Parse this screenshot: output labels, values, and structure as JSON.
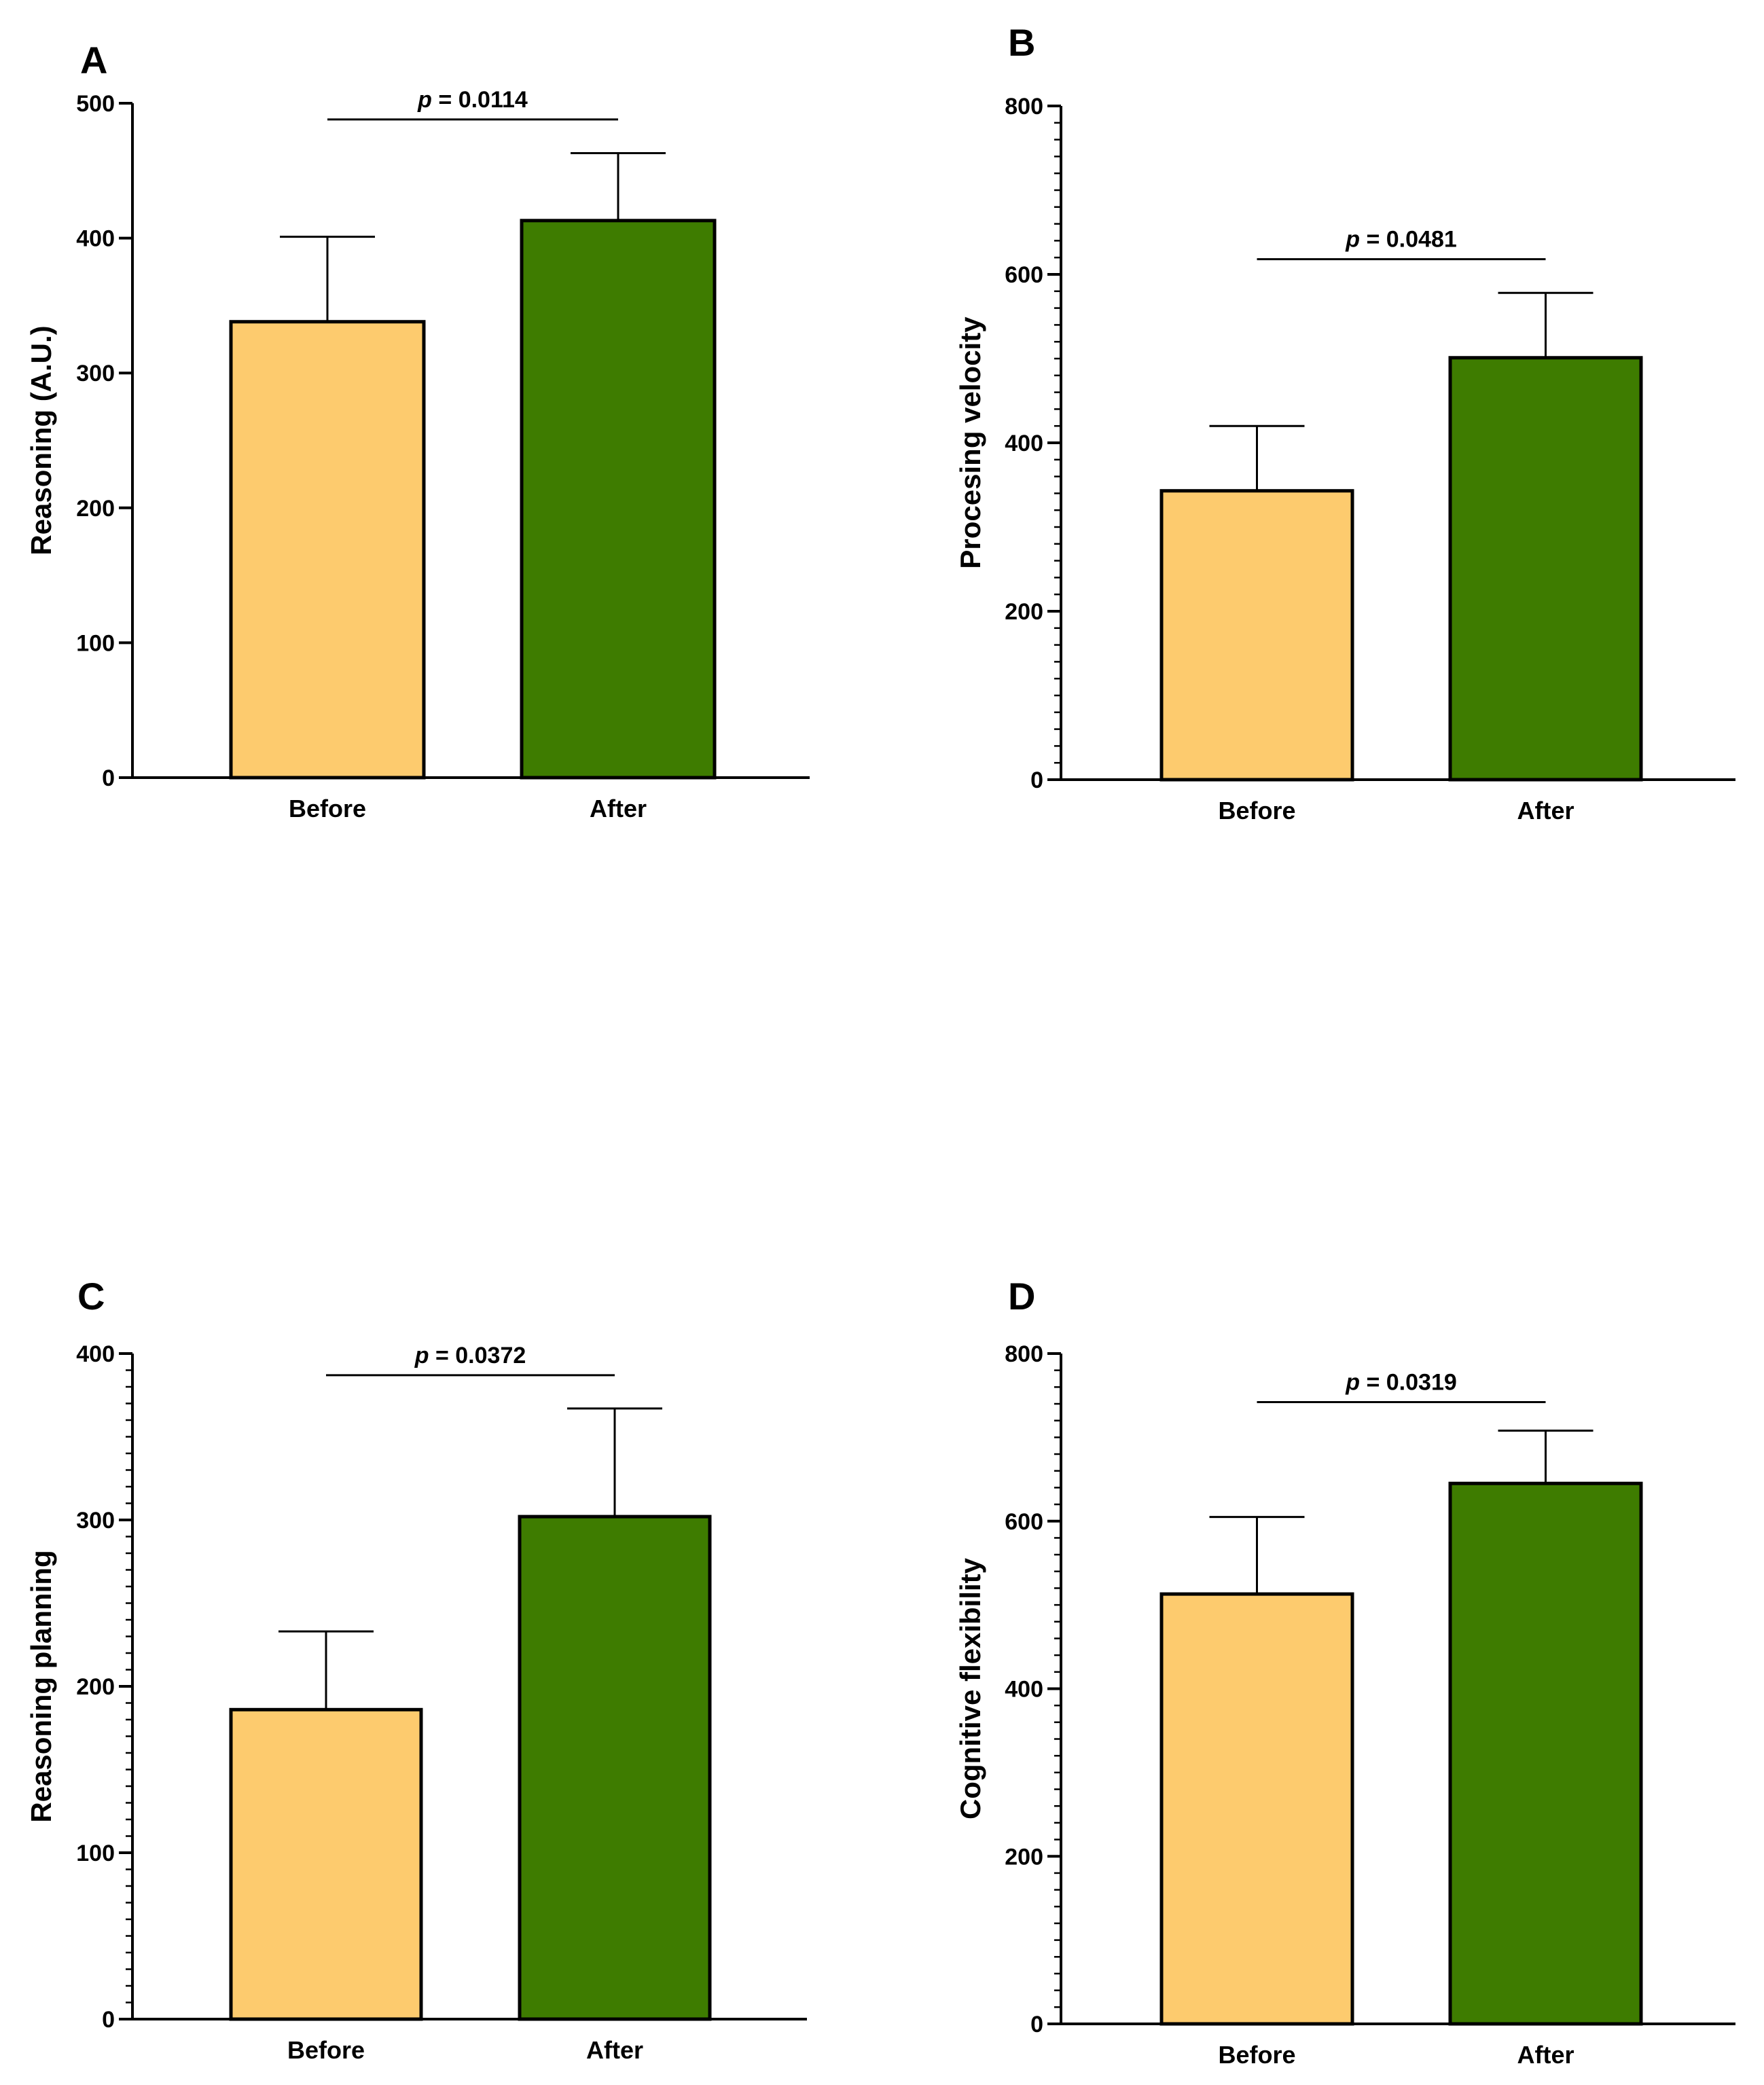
{
  "colors": {
    "before": "#FDCB6E",
    "after": "#3E7C00",
    "stroke": "#000000"
  },
  "chart_data": [
    {
      "type": "bar",
      "panel": "A",
      "categories": [
        "Before",
        "After"
      ],
      "values": [
        338,
        413
      ],
      "error_upper": [
        401,
        463
      ],
      "ylabel": "Reasoning (A.U.)",
      "ylim": [
        0,
        500
      ],
      "yticks": [
        0,
        100,
        200,
        300,
        400,
        500
      ],
      "minor_ticks": false,
      "bracket_value": 488,
      "p_prefix": "p",
      "p_text": " = 0.0114",
      "grid": false
    },
    {
      "type": "bar",
      "panel": "B",
      "categories": [
        "Before",
        "After"
      ],
      "values": [
        343,
        501
      ],
      "error_upper": [
        420,
        578
      ],
      "ylabel": "Procesing velocity",
      "ylim": [
        0,
        800
      ],
      "yticks": [
        0,
        200,
        400,
        600,
        800
      ],
      "minor_ticks": true,
      "bracket_value": 618,
      "p_prefix": "p",
      "p_text": " = 0.0481",
      "grid": false
    },
    {
      "type": "bar",
      "panel": "C",
      "categories": [
        "Before",
        "After"
      ],
      "values": [
        186,
        302
      ],
      "error_upper": [
        233,
        367
      ],
      "ylabel": "Reasoning planning",
      "ylim": [
        0,
        400
      ],
      "yticks": [
        0,
        100,
        200,
        300,
        400
      ],
      "minor_ticks": true,
      "bracket_value": 387,
      "p_prefix": "p",
      "p_text": " = 0.0372",
      "grid": false
    },
    {
      "type": "bar",
      "panel": "D",
      "categories": [
        "Before",
        "After"
      ],
      "values": [
        513,
        645
      ],
      "error_upper": [
        605,
        708
      ],
      "ylabel": "Cognitive flexibility",
      "ylim": [
        0,
        800
      ],
      "yticks": [
        0,
        200,
        400,
        600,
        800
      ],
      "minor_ticks": true,
      "bracket_value": 742,
      "p_prefix": "p",
      "p_text": " = 0.0319",
      "grid": false
    }
  ]
}
